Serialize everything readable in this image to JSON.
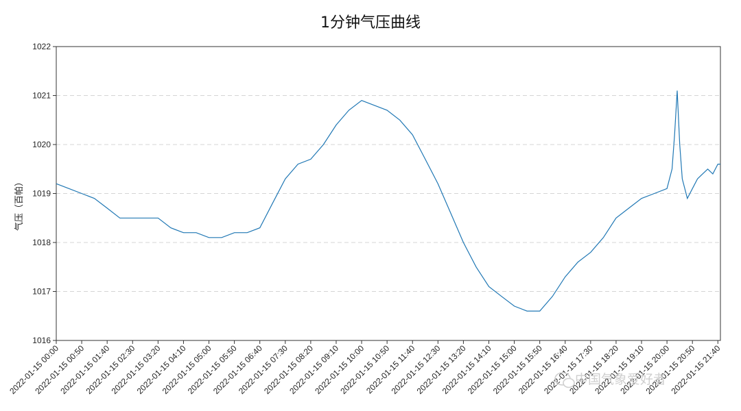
{
  "chart_data": {
    "type": "line",
    "title": "1分钟气压曲线",
    "xlabel": "",
    "ylabel": "气压（百帕）",
    "ylim": [
      1016,
      1022
    ],
    "yticks": [
      1016,
      1017,
      1018,
      1019,
      1020,
      1021,
      1022
    ],
    "grid": "horizontal dashed",
    "legend": "none",
    "line_color": "#1f77b4",
    "x_start": "2022-01-15 00:00",
    "x_end": "2022-01-15 21:45",
    "x_tick_interval_minutes": 50,
    "xtick_labels": [
      "2022-01-15 00:00",
      "2022-01-15 00:50",
      "2022-01-15 01:40",
      "2022-01-15 02:30",
      "2022-01-15 03:20",
      "2022-01-15 04:10",
      "2022-01-15 05:00",
      "2022-01-15 05:50",
      "2022-01-15 06:40",
      "2022-01-15 07:30",
      "2022-01-15 08:20",
      "2022-01-15 09:10",
      "2022-01-15 10:00",
      "2022-01-15 10:50",
      "2022-01-15 11:40",
      "2022-01-15 12:30",
      "2022-01-15 13:20",
      "2022-01-15 14:10",
      "2022-01-15 15:00",
      "2022-01-15 15:50",
      "2022-01-15 16:40",
      "2022-01-15 17:30",
      "2022-01-15 18:20",
      "2022-01-15 19:10",
      "2022-01-15 20:00",
      "2022-01-15 20:50",
      "2022-01-15 21:40"
    ],
    "x": [
      "2022-01-15 00:00",
      "2022-01-15 00:25",
      "2022-01-15 00:50",
      "2022-01-15 01:15",
      "2022-01-15 01:40",
      "2022-01-15 02:05",
      "2022-01-15 02:30",
      "2022-01-15 02:55",
      "2022-01-15 03:20",
      "2022-01-15 03:45",
      "2022-01-15 04:10",
      "2022-01-15 04:35",
      "2022-01-15 05:00",
      "2022-01-15 05:25",
      "2022-01-15 05:50",
      "2022-01-15 06:15",
      "2022-01-15 06:40",
      "2022-01-15 07:05",
      "2022-01-15 07:30",
      "2022-01-15 07:55",
      "2022-01-15 08:20",
      "2022-01-15 08:45",
      "2022-01-15 09:10",
      "2022-01-15 09:35",
      "2022-01-15 10:00",
      "2022-01-15 10:25",
      "2022-01-15 10:50",
      "2022-01-15 11:15",
      "2022-01-15 11:40",
      "2022-01-15 12:05",
      "2022-01-15 12:30",
      "2022-01-15 12:55",
      "2022-01-15 13:20",
      "2022-01-15 13:45",
      "2022-01-15 14:10",
      "2022-01-15 14:35",
      "2022-01-15 15:00",
      "2022-01-15 15:25",
      "2022-01-15 15:50",
      "2022-01-15 16:15",
      "2022-01-15 16:40",
      "2022-01-15 17:05",
      "2022-01-15 17:30",
      "2022-01-15 17:55",
      "2022-01-15 18:20",
      "2022-01-15 18:45",
      "2022-01-15 19:10",
      "2022-01-15 19:35",
      "2022-01-15 20:00",
      "2022-01-15 20:10",
      "2022-01-15 20:15",
      "2022-01-15 20:20",
      "2022-01-15 20:25",
      "2022-01-15 20:30",
      "2022-01-15 20:40",
      "2022-01-15 20:50",
      "2022-01-15 21:00",
      "2022-01-15 21:10",
      "2022-01-15 21:20",
      "2022-01-15 21:30",
      "2022-01-15 21:40",
      "2022-01-15 21:45"
    ],
    "series": [
      {
        "values": [
          1019.2,
          1019.1,
          1019.0,
          1018.9,
          1018.7,
          1018.5,
          1018.5,
          1018.5,
          1018.5,
          1018.3,
          1018.2,
          1018.2,
          1018.1,
          1018.1,
          1018.2,
          1018.2,
          1018.3,
          1018.8,
          1019.3,
          1019.6,
          1019.7,
          1020.0,
          1020.4,
          1020.7,
          1020.9,
          1020.8,
          1020.7,
          1020.5,
          1020.2,
          1019.7,
          1019.2,
          1018.6,
          1018.0,
          1017.5,
          1017.1,
          1016.9,
          1016.7,
          1016.6,
          1016.6,
          1016.9,
          1017.3,
          1017.6,
          1017.8,
          1018.1,
          1018.5,
          1018.7,
          1018.9,
          1019.0,
          1019.1,
          1019.5,
          1020.2,
          1021.1,
          1020.0,
          1019.3,
          1018.9,
          1019.1,
          1019.3,
          1019.4,
          1019.5,
          1019.4,
          1019.6,
          1019.6
        ]
      }
    ]
  },
  "watermark": {
    "icon": "wechat-icon",
    "text": "中国气象爱好者"
  }
}
